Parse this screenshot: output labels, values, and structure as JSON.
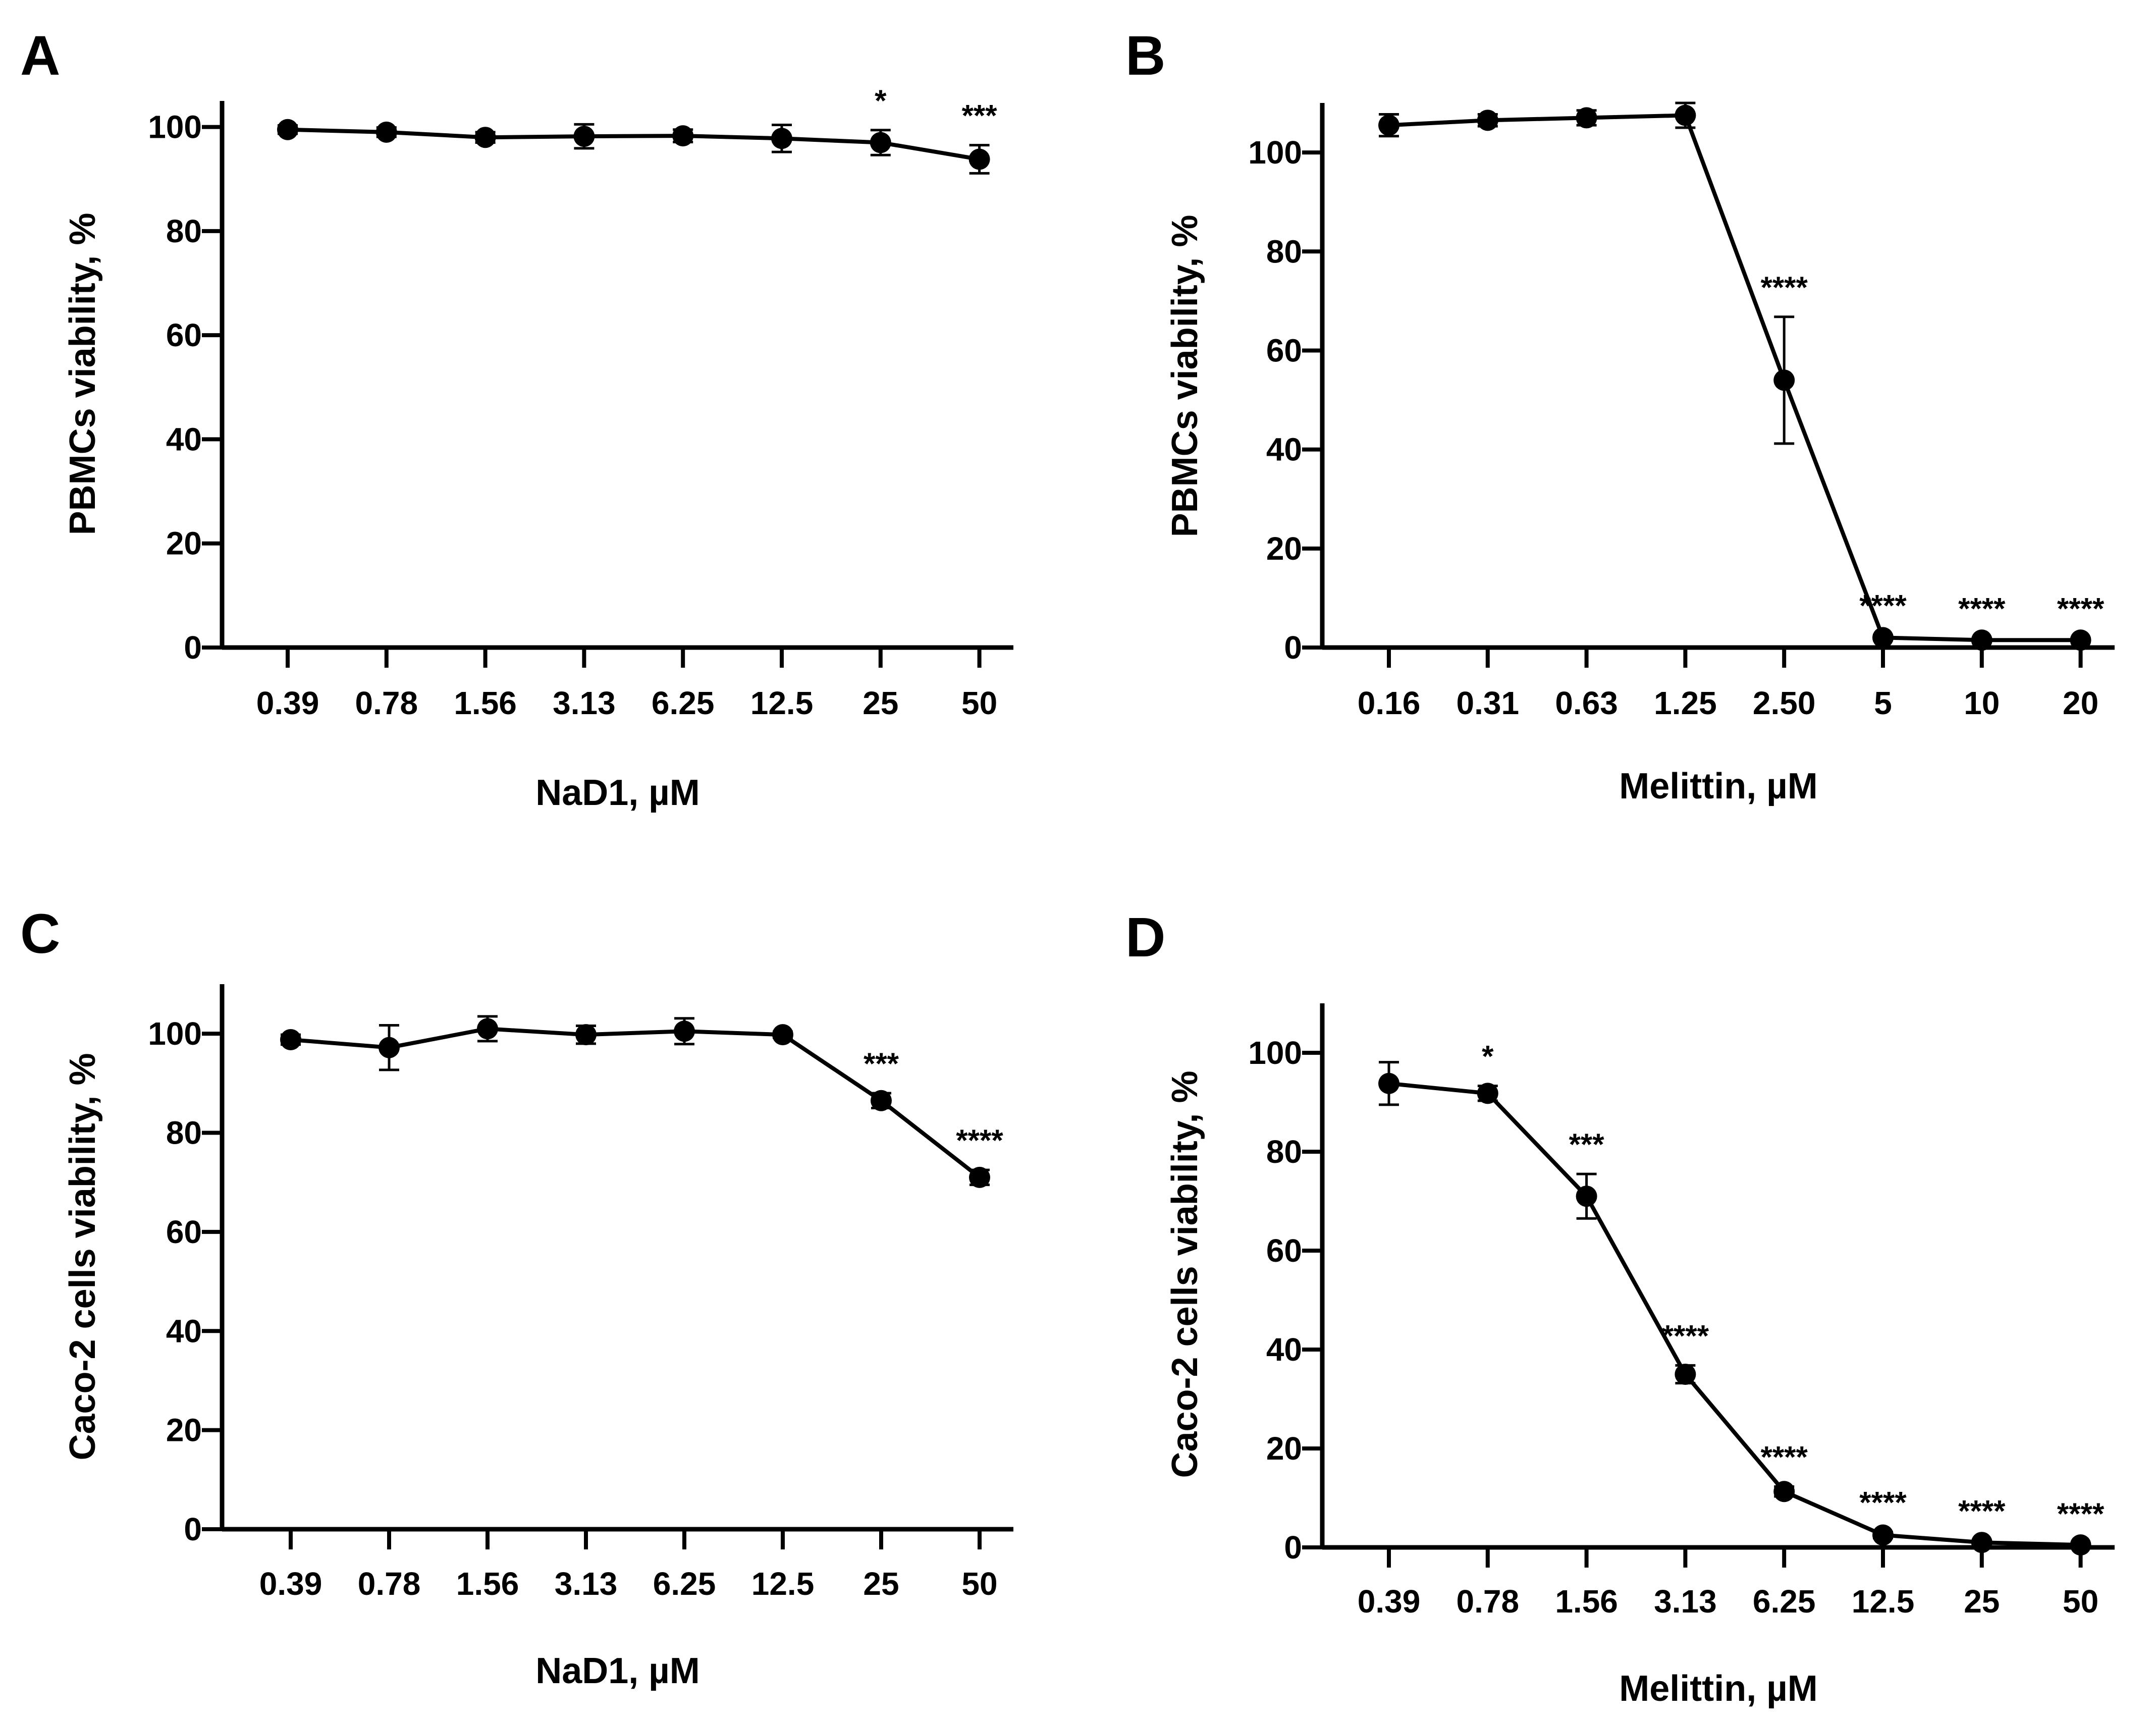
{
  "chart_data": [
    {
      "panel": "A",
      "type": "line",
      "title": "",
      "xlabel": "NaD1, µM",
      "ylabel": "PBMCs viability, %",
      "categories": [
        "0.39",
        "0.78",
        "1.56",
        "3.13",
        "6.25",
        "12.5",
        "25",
        "50"
      ],
      "values": [
        99.5,
        99.0,
        98.0,
        98.2,
        98.3,
        97.8,
        97.0,
        93.8
      ],
      "errors": [
        0.8,
        0.9,
        1.0,
        2.3,
        1.2,
        2.6,
        2.4,
        2.7
      ],
      "significance": [
        "",
        "",
        "",
        "",
        "",
        "",
        "*",
        "***"
      ],
      "ylim": [
        0,
        105
      ],
      "yticks": [
        0,
        20,
        40,
        60,
        80,
        100
      ]
    },
    {
      "panel": "B",
      "type": "line",
      "title": "",
      "xlabel": "Melittin, µM",
      "ylabel": "PBMCs viability, %",
      "categories": [
        "0.16",
        "0.31",
        "0.63",
        "1.25",
        "2.50",
        "5",
        "10",
        "20"
      ],
      "values": [
        105.5,
        106.5,
        107.0,
        107.5,
        54.0,
        2.0,
        1.5,
        1.5
      ],
      "errors": [
        2.2,
        1.2,
        1.5,
        2.5,
        12.8,
        0.5,
        0.4,
        0.4
      ],
      "significance": [
        "",
        "",
        "",
        "",
        "****",
        "****",
        "****",
        "****"
      ],
      "ylim": [
        0,
        110
      ],
      "yticks": [
        0,
        20,
        40,
        60,
        80,
        100
      ]
    },
    {
      "panel": "C",
      "type": "line",
      "title": "",
      "xlabel": "NaD1, µM",
      "ylabel": "Caco-2 cells viability, %",
      "categories": [
        "0.39",
        "0.78",
        "1.56",
        "3.13",
        "6.25",
        "12.5",
        "25",
        "50"
      ],
      "values": [
        98.8,
        97.2,
        101.0,
        99.8,
        100.5,
        99.8,
        86.5,
        71.0
      ],
      "errors": [
        1.0,
        4.5,
        2.5,
        1.8,
        2.6,
        0.6,
        1.5,
        1.5
      ],
      "significance": [
        "",
        "",
        "",
        "",
        "",
        "",
        "***",
        "****"
      ],
      "ylim": [
        0,
        110
      ],
      "yticks": [
        0,
        20,
        40,
        60,
        80,
        100
      ]
    },
    {
      "panel": "D",
      "type": "line",
      "title": "",
      "xlabel": "Melittin, µM",
      "ylabel": "Caco-2 cells viability, %",
      "categories": [
        "0.39",
        "0.78",
        "1.56",
        "3.13",
        "6.25",
        "12.5",
        "25",
        "50"
      ],
      "values": [
        93.8,
        91.8,
        71.0,
        35.0,
        11.3,
        2.5,
        1.0,
        0.5
      ],
      "errors": [
        4.3,
        1.5,
        4.5,
        1.8,
        1.0,
        0.6,
        0.4,
        0.3
      ],
      "significance": [
        "",
        "*",
        "***",
        "****",
        "****",
        "****",
        "****",
        "****"
      ],
      "ylim": [
        0,
        110
      ],
      "yticks": [
        0,
        20,
        40,
        60,
        80,
        100
      ]
    }
  ]
}
